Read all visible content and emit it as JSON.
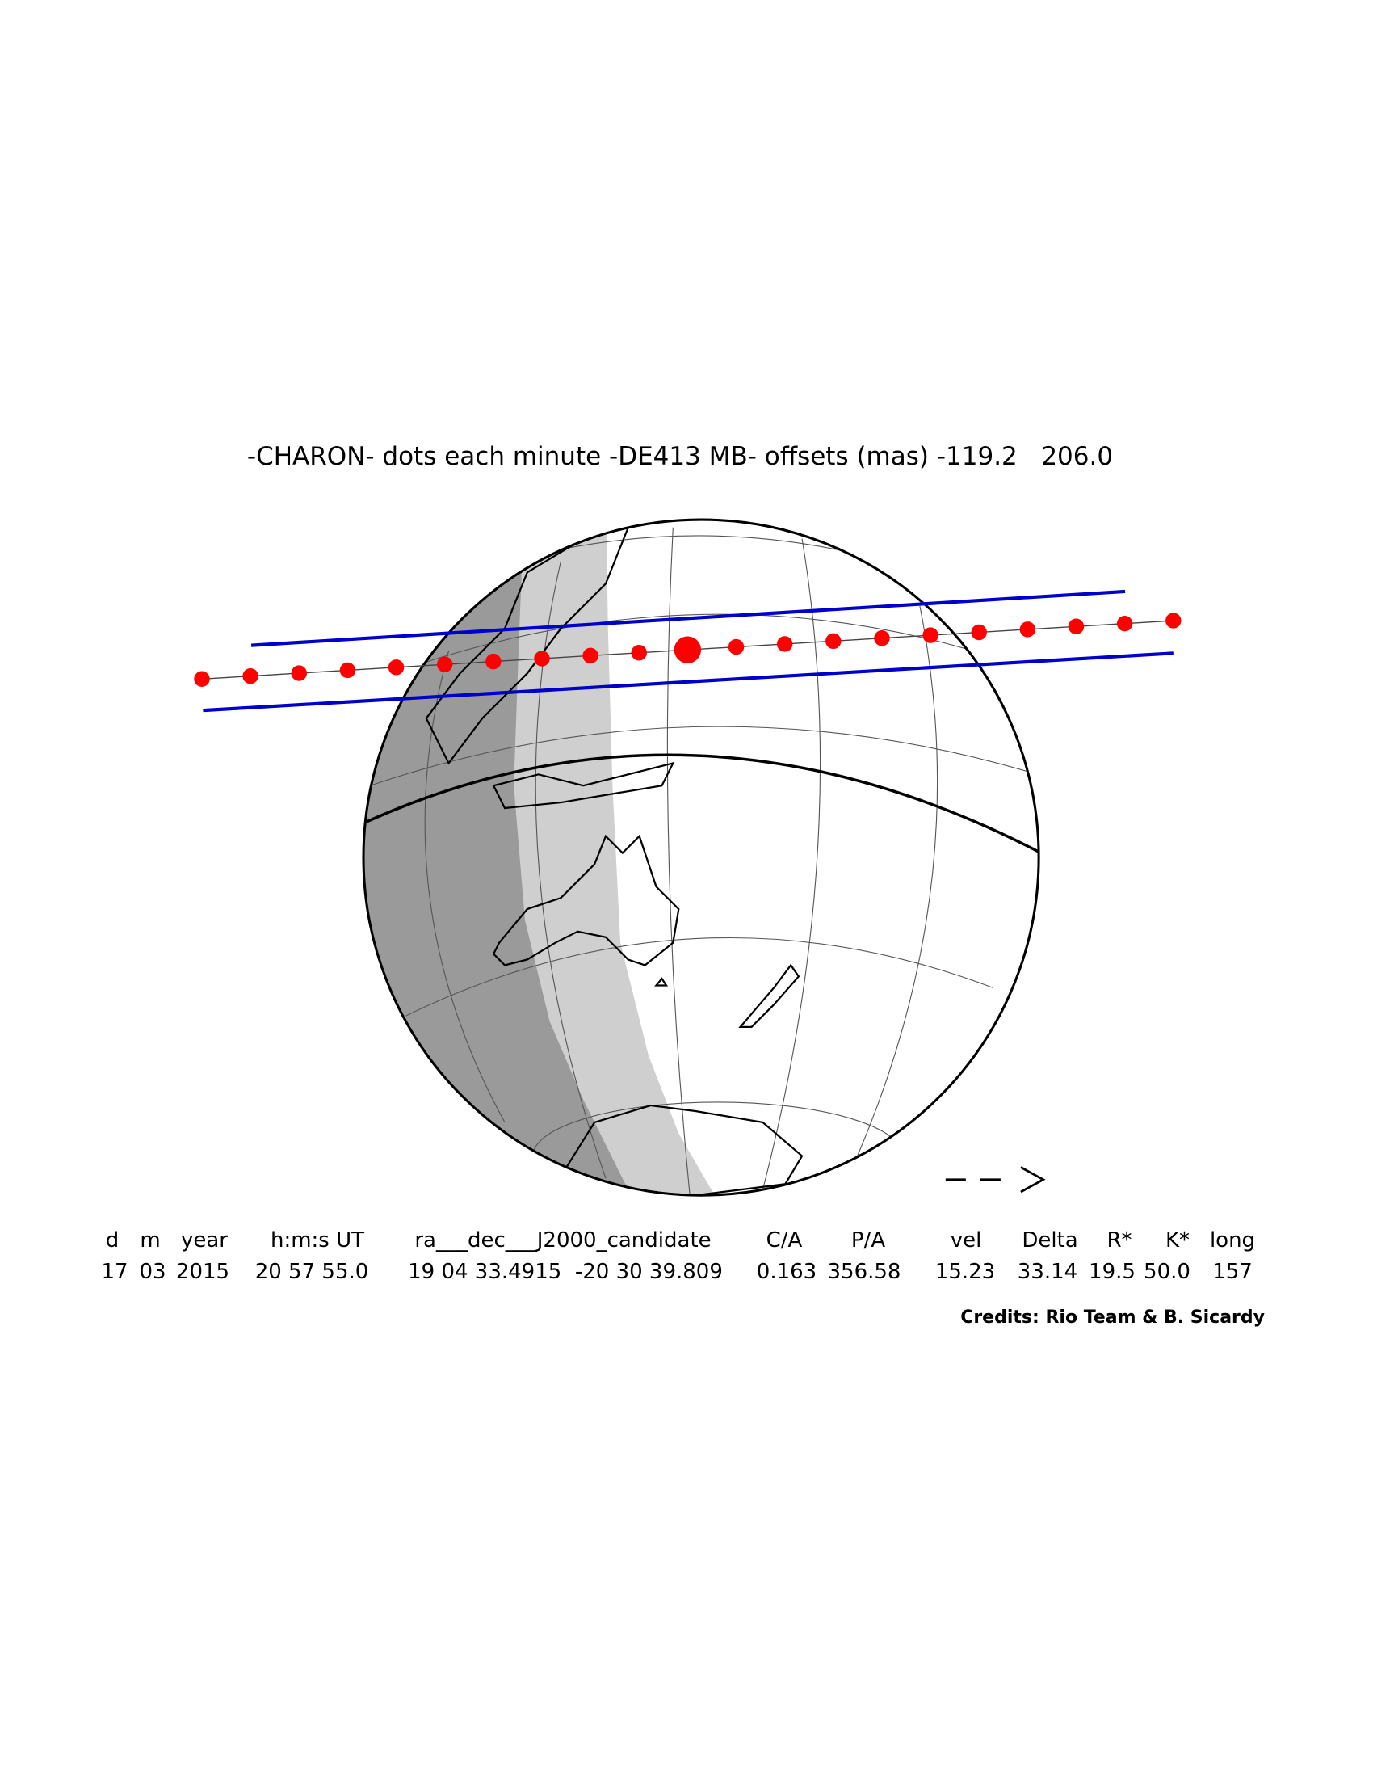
{
  "title": "-CHARON- dots each minute -DE413 MB- offsets (mas) -119.2   206.0",
  "table": {
    "headers": [
      "d",
      "m",
      "year",
      "h:m:s UT",
      "ra___dec___J2000_candidate",
      "C/A",
      "P/A",
      "vel",
      "Delta",
      "R*",
      "K*",
      "long"
    ],
    "values": [
      "17",
      "03",
      "2015",
      "20 57 55.0",
      "19 04 33.4915  -20 30 39.809",
      "0.163",
      "356.58",
      "15.23",
      "33.14",
      "19.5",
      "50.0",
      "157"
    ]
  },
  "credits": "Credits: Rio Team & B. Sicardy"
}
